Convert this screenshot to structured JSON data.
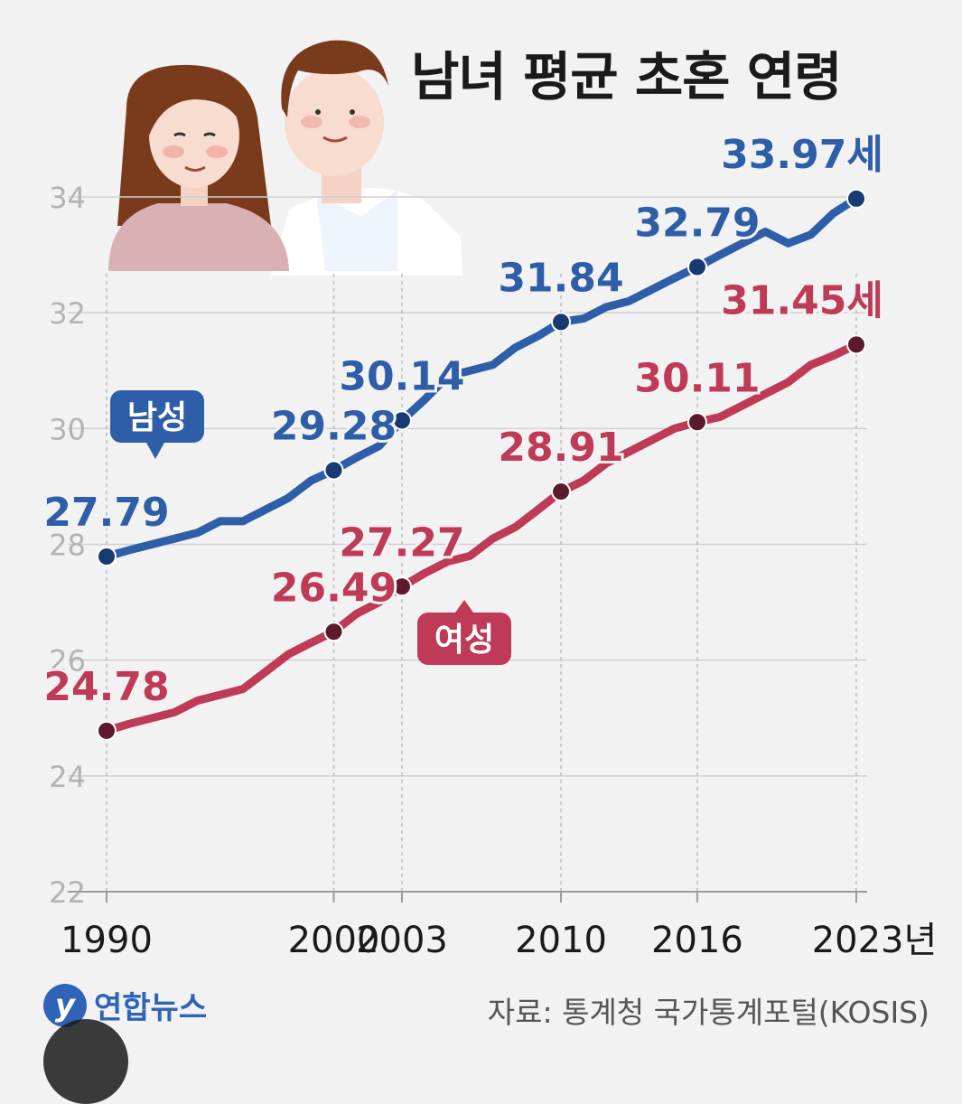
{
  "title": "남녀 평균 초혼 연령",
  "source": "자료: 통계청 국가통계포털(KOSIS)",
  "logo_text": "연합뉴스",
  "logo_mark": "y",
  "colors": {
    "male": "#2e5ea8",
    "female": "#bf3a57",
    "grid": "#cfcfcf",
    "axis": "#9a9a9a"
  },
  "chart_data": {
    "type": "line",
    "title": "남녀 평균 초혼 연령",
    "x_tick_labels": [
      "1990",
      "2000",
      "2003",
      "2010",
      "2016",
      "2023년"
    ],
    "x_ticks": [
      1990,
      2000,
      2003,
      2010,
      2016,
      2023
    ],
    "y_ticks": [
      "22",
      "24",
      "26",
      "28",
      "30",
      "32",
      "34"
    ],
    "ylim": [
      22,
      34
    ],
    "xlim": [
      1990,
      2023
    ],
    "grid": true,
    "series": [
      {
        "name": "남성",
        "color": "#2e5ea8",
        "x": [
          1990,
          1991,
          1992,
          1993,
          1994,
          1995,
          1996,
          1997,
          1998,
          1999,
          2000,
          2001,
          2002,
          2003,
          2004,
          2005,
          2006,
          2007,
          2008,
          2009,
          2010,
          2011,
          2012,
          2013,
          2014,
          2015,
          2016,
          2017,
          2018,
          2019,
          2020,
          2021,
          2022,
          2023
        ],
        "values": [
          27.79,
          27.9,
          28.0,
          28.1,
          28.2,
          28.4,
          28.4,
          28.6,
          28.8,
          29.1,
          29.28,
          29.5,
          29.7,
          30.14,
          30.5,
          30.9,
          31.0,
          31.1,
          31.4,
          31.6,
          31.84,
          31.9,
          32.1,
          32.2,
          32.4,
          32.6,
          32.79,
          33.0,
          33.2,
          33.4,
          33.2,
          33.35,
          33.72,
          33.97
        ],
        "labels": [
          {
            "x": 1990,
            "text": "27.79"
          },
          {
            "x": 2000,
            "text": "29.28"
          },
          {
            "x": 2003,
            "text": "30.14"
          },
          {
            "x": 2010,
            "text": "31.84"
          },
          {
            "x": 2016,
            "text": "32.79"
          },
          {
            "x": 2023,
            "text": "33.97세"
          }
        ]
      },
      {
        "name": "여성",
        "color": "#bf3a57",
        "x": [
          1990,
          1991,
          1992,
          1993,
          1994,
          1995,
          1996,
          1997,
          1998,
          1999,
          2000,
          2001,
          2002,
          2003,
          2004,
          2005,
          2006,
          2007,
          2008,
          2009,
          2010,
          2011,
          2012,
          2013,
          2014,
          2015,
          2016,
          2017,
          2018,
          2019,
          2020,
          2021,
          2022,
          2023
        ],
        "values": [
          24.78,
          24.9,
          25.0,
          25.1,
          25.3,
          25.4,
          25.5,
          25.8,
          26.1,
          26.3,
          26.49,
          26.8,
          27.0,
          27.27,
          27.5,
          27.7,
          27.8,
          28.1,
          28.3,
          28.6,
          28.91,
          29.1,
          29.4,
          29.6,
          29.8,
          30.0,
          30.11,
          30.2,
          30.4,
          30.6,
          30.8,
          31.1,
          31.26,
          31.45
        ],
        "labels": [
          {
            "x": 1990,
            "text": "24.78"
          },
          {
            "x": 2000,
            "text": "26.49"
          },
          {
            "x": 2003,
            "text": "27.27"
          },
          {
            "x": 2010,
            "text": "28.91"
          },
          {
            "x": 2016,
            "text": "30.11"
          },
          {
            "x": 2023,
            "text": "31.45세"
          }
        ]
      }
    ]
  }
}
